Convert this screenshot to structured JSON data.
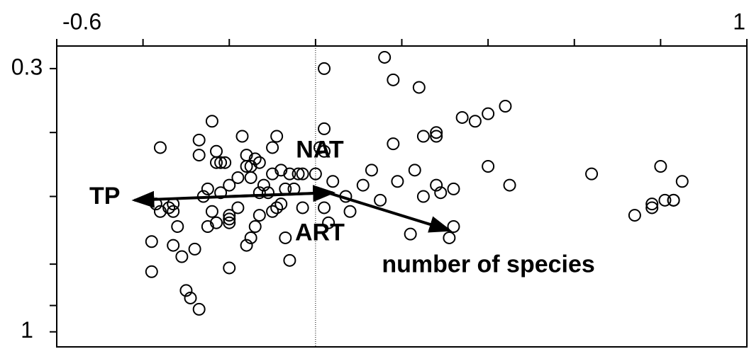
{
  "chart_data": {
    "type": "scatter",
    "xlim": [
      -0.6,
      1.0
    ],
    "xticks": [
      -0.6,
      1.0
    ],
    "xminorticks": [
      -0.4,
      -0.2,
      0,
      0.2,
      0.4,
      0.6,
      0.8
    ],
    "ylim": [
      0.24,
      1.04
    ],
    "yinverted": true,
    "yticks": [
      0.3,
      1.0
    ],
    "yminorticks": [
      0.47,
      0.64,
      0.82,
      0.93
    ],
    "vline": 0,
    "color": "#000000",
    "x": [
      0.16,
      0.02,
      0.18,
      0.24,
      0.44,
      0.4,
      0.34,
      0.37,
      -0.24,
      0.02,
      0.28,
      0.28,
      0.25,
      -0.17,
      -0.09,
      -0.27,
      0.18,
      -0.1,
      -0.36,
      -0.23,
      0.01,
      0.02,
      -0.16,
      -0.27,
      -0.14,
      -0.15,
      -0.23,
      -0.22,
      -0.21,
      -0.16,
      -0.13,
      0.4,
      -0.08,
      0.13,
      -0.1,
      -0.18,
      -0.15,
      0.23,
      -0.03,
      -0.04,
      0.0,
      0.64,
      0.8,
      -0.12,
      -0.06,
      0.19,
      0.11,
      -0.25,
      -0.2,
      -0.07,
      0.04,
      0.45,
      0.85,
      0.28,
      0.32,
      0.29,
      -0.05,
      -0.11,
      -0.22,
      -0.13,
      -0.26,
      0.07,
      0.15,
      0.25,
      0.81,
      0.83,
      0.83,
      0.78,
      -0.37,
      -0.33,
      -0.33,
      -0.36,
      -0.34,
      -0.24,
      -0.08,
      -0.09,
      -0.18,
      -0.03,
      0.02,
      0.08,
      -0.1,
      -0.13,
      -0.2,
      -0.2,
      -0.23,
      -0.2,
      0.03,
      -0.32,
      -0.25,
      -0.14,
      0.74,
      0.32,
      0.22,
      -0.15,
      -0.07,
      0.31,
      -0.16,
      -0.38,
      -0.33,
      -0.28,
      -0.31,
      -0.06,
      -0.2,
      -0.38,
      -0.3,
      -0.29,
      -0.27,
      0.78
    ],
    "y": [
      0.27,
      0.3,
      0.33,
      0.35,
      0.4,
      0.42,
      0.43,
      0.44,
      0.44,
      0.46,
      0.47,
      0.48,
      0.48,
      0.48,
      0.48,
      0.49,
      0.5,
      0.51,
      0.51,
      0.52,
      0.51,
      0.52,
      0.53,
      0.53,
      0.54,
      0.56,
      0.55,
      0.55,
      0.55,
      0.56,
      0.55,
      0.56,
      0.57,
      0.57,
      0.58,
      0.59,
      0.59,
      0.57,
      0.58,
      0.58,
      0.58,
      0.58,
      0.56,
      0.61,
      0.58,
      0.6,
      0.61,
      0.62,
      0.61,
      0.62,
      0.6,
      0.61,
      0.6,
      0.61,
      0.62,
      0.63,
      0.62,
      0.63,
      0.63,
      0.63,
      0.64,
      0.64,
      0.65,
      0.64,
      0.65,
      0.65,
      0.65,
      0.66,
      0.66,
      0.66,
      0.68,
      0.68,
      0.67,
      0.68,
      0.66,
      0.67,
      0.67,
      0.67,
      0.67,
      0.68,
      0.68,
      0.69,
      0.69,
      0.7,
      0.71,
      0.71,
      0.71,
      0.72,
      0.72,
      0.72,
      0.69,
      0.72,
      0.74,
      0.75,
      0.75,
      0.75,
      0.77,
      0.76,
      0.77,
      0.78,
      0.8,
      0.81,
      0.83,
      0.84,
      0.89,
      0.91,
      0.94,
      0.67
    ],
    "arrows": [
      {
        "label": "TP",
        "x": [
          0.03,
          -0.42
        ],
        "y": [
          0.63,
          0.65
        ]
      },
      {
        "label": "number of species",
        "x": [
          0.0,
          0.31
        ],
        "y": [
          0.62,
          0.73
        ]
      },
      {
        "x": [
          -0.2,
          0.04
        ],
        "y": [
          0.64,
          0.63
        ]
      }
    ],
    "annotations": [
      {
        "text": "NAT",
        "x": 0.01,
        "y": 0.52
      },
      {
        "text": "ART",
        "x": 0.01,
        "y": 0.74
      }
    ]
  }
}
